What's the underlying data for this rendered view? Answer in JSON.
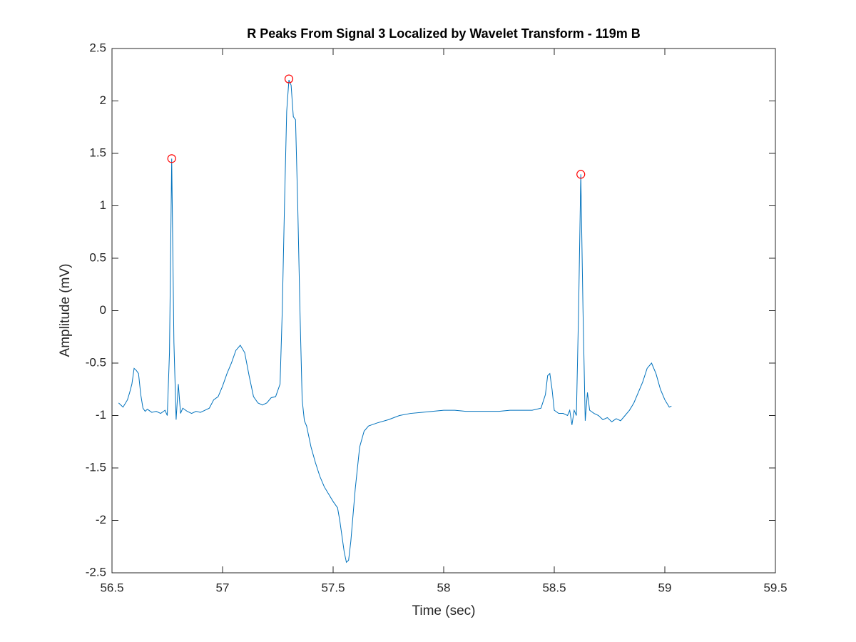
{
  "chart_data": {
    "type": "line",
    "title": "R Peaks From Signal 3 Localized by Wavelet Transform - 119m B",
    "x_label": "Time (sec)",
    "y_label": "Amplitude (mV)",
    "xlim": [
      56.5,
      59.5
    ],
    "xticks": [
      56.5,
      57,
      57.5,
      58,
      58.5,
      59,
      59.5
    ],
    "ylim": [
      -2.5,
      2.5
    ],
    "yticks": [
      -2.5,
      -2,
      -1.5,
      -1,
      -0.5,
      0,
      0.5,
      1,
      1.5,
      2,
      2.5
    ],
    "grid": false,
    "x": [
      56.53,
      56.55,
      56.57,
      56.58,
      56.59,
      56.6,
      56.61,
      56.62,
      56.63,
      56.64,
      56.65,
      56.66,
      56.68,
      56.7,
      56.72,
      56.74,
      56.75,
      56.76,
      56.77,
      56.78,
      56.79,
      56.8,
      56.81,
      56.82,
      56.84,
      56.86,
      56.88,
      56.9,
      56.92,
      56.94,
      56.96,
      56.98,
      57,
      57.02,
      57.04,
      57.06,
      57.08,
      57.1,
      57.12,
      57.14,
      57.16,
      57.18,
      57.2,
      57.22,
      57.24,
      57.26,
      57.27,
      57.28,
      57.29,
      57.3,
      57.31,
      57.32,
      57.33,
      57.34,
      57.35,
      57.36,
      57.37,
      57.38,
      57.4,
      57.42,
      57.44,
      57.46,
      57.48,
      57.5,
      57.52,
      57.53,
      57.55,
      57.56,
      57.57,
      57.58,
      57.6,
      57.62,
      57.64,
      57.66,
      57.7,
      57.75,
      57.8,
      57.85,
      57.9,
      57.95,
      58,
      58.05,
      58.1,
      58.15,
      58.2,
      58.25,
      58.3,
      58.35,
      58.4,
      58.44,
      58.46,
      58.47,
      58.48,
      58.49,
      58.5,
      58.52,
      58.54,
      58.56,
      58.57,
      58.58,
      58.59,
      58.6,
      58.61,
      58.62,
      58.63,
      58.64,
      58.65,
      58.66,
      58.68,
      58.7,
      58.72,
      58.74,
      58.76,
      58.78,
      58.8,
      58.82,
      58.84,
      58.86,
      58.88,
      58.9,
      58.92,
      58.94,
      58.96,
      58.98,
      59,
      59.02,
      59.03
    ],
    "series": [
      {
        "color": "#0072bd",
        "values": [
          -0.88,
          -0.92,
          -0.85,
          -0.78,
          -0.7,
          -0.55,
          -0.57,
          -0.6,
          -0.8,
          -0.93,
          -0.96,
          -0.94,
          -0.97,
          -0.96,
          -0.98,
          -0.95,
          -1,
          -0.4,
          1.45,
          -0.3,
          -1.04,
          -0.7,
          -0.98,
          -0.93,
          -0.96,
          -0.98,
          -0.96,
          -0.97,
          -0.95,
          -0.93,
          -0.85,
          -0.82,
          -0.72,
          -0.6,
          -0.5,
          -0.38,
          -0.33,
          -0.4,
          -0.62,
          -0.82,
          -0.88,
          -0.9,
          -0.88,
          -0.83,
          -0.82,
          -0.7,
          0,
          1,
          1.9,
          2.2,
          2.15,
          1.85,
          1.82,
          1,
          0,
          -0.85,
          -1.05,
          -1.1,
          -1.3,
          -1.45,
          -1.58,
          -1.68,
          -1.75,
          -1.82,
          -1.88,
          -2,
          -2.3,
          -2.4,
          -2.38,
          -2.2,
          -1.7,
          -1.3,
          -1.15,
          -1.1,
          -1.07,
          -1.04,
          -1,
          -0.98,
          -0.97,
          -0.96,
          -0.95,
          -0.95,
          -0.96,
          -0.96,
          -0.96,
          -0.96,
          -0.95,
          -0.95,
          -0.95,
          -0.93,
          -0.8,
          -0.62,
          -0.6,
          -0.75,
          -0.95,
          -0.98,
          -0.98,
          -1,
          -0.95,
          -1.09,
          -0.95,
          -1,
          0,
          1.3,
          0,
          -1.05,
          -0.78,
          -0.95,
          -0.98,
          -1,
          -1.04,
          -1.02,
          -1.06,
          -1.03,
          -1.05,
          -1,
          -0.95,
          -0.88,
          -0.78,
          -0.68,
          -0.55,
          -0.5,
          -0.6,
          -0.75,
          -0.85,
          -0.92,
          -0.91
        ]
      }
    ],
    "peaks": {
      "color": "#ff0000",
      "x": [
        56.77,
        57.3,
        58.62
      ],
      "values": [
        1.45,
        2.21,
        1.3
      ]
    }
  }
}
